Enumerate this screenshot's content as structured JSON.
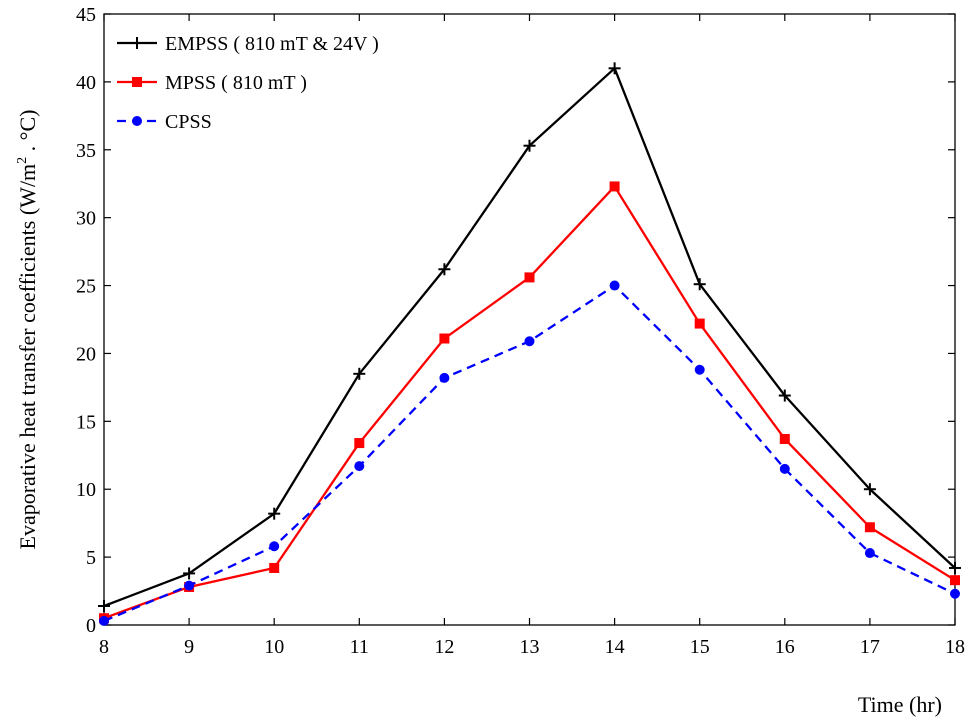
{
  "chart_data": {
    "type": "line",
    "title": "",
    "xlabel": "Time (hr)",
    "ylabel_main": "Evaporative heat transfer coefficients (W/m",
    "ylabel_sup": "2",
    "ylabel_tail": " . °C)",
    "x": [
      8,
      9,
      10,
      11,
      12,
      13,
      14,
      15,
      16,
      17,
      18
    ],
    "xlim": [
      8,
      18
    ],
    "ylim": [
      0,
      45
    ],
    "xticks": [
      "8",
      "9",
      "10",
      "11",
      "12",
      "13",
      "14",
      "15",
      "16",
      "17",
      "18"
    ],
    "yticks": [
      "0",
      "5",
      "10",
      "15",
      "20",
      "25",
      "30",
      "35",
      "40",
      "45"
    ],
    "legend_position": "top-left",
    "series": [
      {
        "name": "EMPSS ( 810 mT & 24V )",
        "color": "#000000",
        "marker": "plus",
        "dash": "solid",
        "values": [
          1.4,
          3.8,
          8.2,
          18.5,
          26.2,
          35.3,
          41.0,
          25.1,
          16.9,
          10.0,
          4.2
        ]
      },
      {
        "name": "MPSS ( 810 mT )",
        "color": "#ff0000",
        "marker": "square",
        "dash": "solid",
        "values": [
          0.5,
          2.8,
          4.2,
          13.4,
          21.1,
          25.6,
          32.3,
          22.2,
          13.7,
          7.2,
          3.3
        ]
      },
      {
        "name": "CPSS",
        "color": "#0000ff",
        "marker": "circle",
        "dash": "dashed",
        "values": [
          0.3,
          2.9,
          5.8,
          11.7,
          18.2,
          20.9,
          25.0,
          18.8,
          11.5,
          5.3,
          2.3
        ]
      }
    ]
  }
}
